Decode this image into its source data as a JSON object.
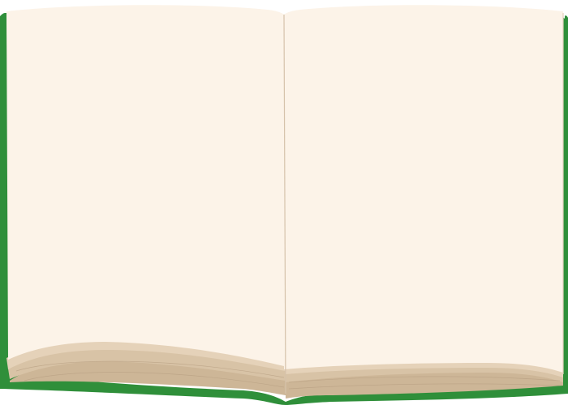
{
  "book": {
    "state": "open",
    "pages_content": "blank",
    "colors": {
      "cover": "#2f8f3a",
      "cover_shadow": "#24722e",
      "page": "#fcf3e8",
      "page_edge_light": "#e5d2b9",
      "page_edge_mid": "#d8c3a6",
      "page_edge_dark": "#cdb697",
      "gutter_line": "#d5c2aa",
      "edge_stroke": "#b9a184"
    },
    "icon": "open-book-icon"
  }
}
